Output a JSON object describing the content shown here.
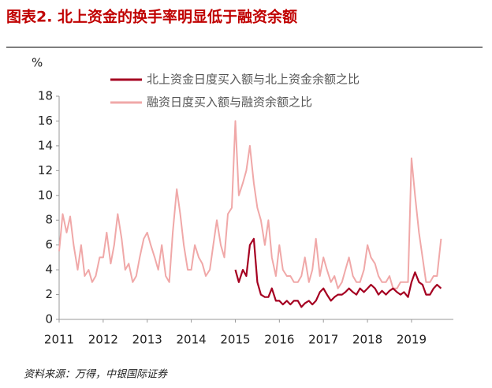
{
  "chart_data": {
    "type": "line",
    "title": "图表2. 北上资金的换手率明显低于融资余额",
    "y_label": "%",
    "source": "资料来源：万得，中银国际证券",
    "xlim": [
      2011,
      2019.95
    ],
    "xticks": [
      2011,
      2012,
      2013,
      2014,
      2015,
      2016,
      2017,
      2018,
      2019
    ],
    "ylim": [
      0,
      18
    ],
    "yticks": [
      0,
      2,
      4,
      6,
      8,
      10,
      12,
      14,
      16,
      18
    ],
    "grid": false,
    "legend": "top",
    "x": [
      2011,
      2011.08,
      2011.17,
      2011.25,
      2011.33,
      2011.42,
      2011.5,
      2011.58,
      2011.67,
      2011.75,
      2011.83,
      2011.92,
      2012,
      2012.08,
      2012.17,
      2012.25,
      2012.33,
      2012.42,
      2012.5,
      2012.58,
      2012.67,
      2012.75,
      2012.83,
      2012.92,
      2013,
      2013.08,
      2013.17,
      2013.25,
      2013.33,
      2013.42,
      2013.5,
      2013.58,
      2013.67,
      2013.75,
      2013.83,
      2013.92,
      2014,
      2014.08,
      2014.17,
      2014.25,
      2014.33,
      2014.42,
      2014.5,
      2014.58,
      2014.67,
      2014.75,
      2014.83,
      2014.92,
      2015,
      2015.08,
      2015.17,
      2015.25,
      2015.33,
      2015.42,
      2015.5,
      2015.58,
      2015.67,
      2015.75,
      2015.83,
      2015.92,
      2016,
      2016.08,
      2016.17,
      2016.25,
      2016.33,
      2016.42,
      2016.5,
      2016.58,
      2016.67,
      2016.75,
      2016.83,
      2016.92,
      2017,
      2017.08,
      2017.17,
      2017.25,
      2017.33,
      2017.42,
      2017.5,
      2017.58,
      2017.67,
      2017.75,
      2017.83,
      2017.92,
      2018,
      2018.08,
      2018.17,
      2018.25,
      2018.33,
      2018.42,
      2018.5,
      2018.58,
      2018.67,
      2018.75,
      2018.83,
      2018.92,
      2019,
      2019.08,
      2019.17,
      2019.25,
      2019.33,
      2019.42,
      2019.5,
      2019.58,
      2019.67
    ],
    "series": [
      {
        "name": "北上资金日度买入额与北上资金余额之比",
        "color": "#a50021",
        "width": 2.2,
        "values": [
          null,
          null,
          null,
          null,
          null,
          null,
          null,
          null,
          null,
          null,
          null,
          null,
          null,
          null,
          null,
          null,
          null,
          null,
          null,
          null,
          null,
          null,
          null,
          null,
          null,
          null,
          null,
          null,
          null,
          null,
          null,
          null,
          null,
          null,
          null,
          null,
          null,
          null,
          null,
          null,
          null,
          null,
          null,
          null,
          null,
          null,
          null,
          null,
          4,
          3,
          4,
          3.5,
          6,
          6.5,
          3,
          2,
          1.8,
          1.8,
          2.5,
          1.5,
          1.5,
          1.2,
          1.5,
          1.2,
          1.5,
          1.5,
          1,
          1.3,
          1.5,
          1.2,
          1.5,
          2.2,
          2.5,
          2,
          1.5,
          1.8,
          2,
          2,
          2.2,
          2.5,
          2.2,
          2,
          2.5,
          2.2,
          2.5,
          2.8,
          2.5,
          2,
          2.3,
          2,
          2.3,
          2.5,
          2.2,
          2,
          2.2,
          1.8,
          3,
          3.8,
          3,
          2.8,
          2,
          2,
          2.5,
          2.8,
          2.5
        ]
      },
      {
        "name": "融资日度买入额与融资余额之比",
        "color": "#f0a8a8",
        "width": 2,
        "values": [
          5.5,
          8.5,
          7,
          8.3,
          6,
          4,
          6,
          3.5,
          4,
          3,
          3.5,
          5,
          5,
          7,
          4.5,
          6,
          8.5,
          6.5,
          4,
          4.5,
          3,
          3.5,
          5,
          6.5,
          7,
          6,
          5,
          4,
          6,
          3.5,
          3,
          7,
          10.5,
          8.5,
          6,
          4,
          4,
          6,
          5,
          4.5,
          3.5,
          4,
          6,
          8,
          6,
          5,
          8.5,
          9,
          16,
          10,
          11,
          12,
          14,
          11,
          9,
          8,
          6,
          8,
          5,
          3.5,
          6,
          4,
          3.5,
          3.5,
          3,
          3,
          3.5,
          5,
          3,
          4,
          6.5,
          3.5,
          5,
          4,
          3,
          3.5,
          2.5,
          3,
          4,
          5,
          3.5,
          3,
          3,
          4,
          6,
          5,
          4.5,
          3.5,
          3,
          3,
          3.5,
          2.5,
          2.5,
          3,
          3,
          3,
          13,
          10,
          7,
          5,
          3,
          3,
          3.5,
          3.5,
          6.5
        ]
      }
    ]
  }
}
